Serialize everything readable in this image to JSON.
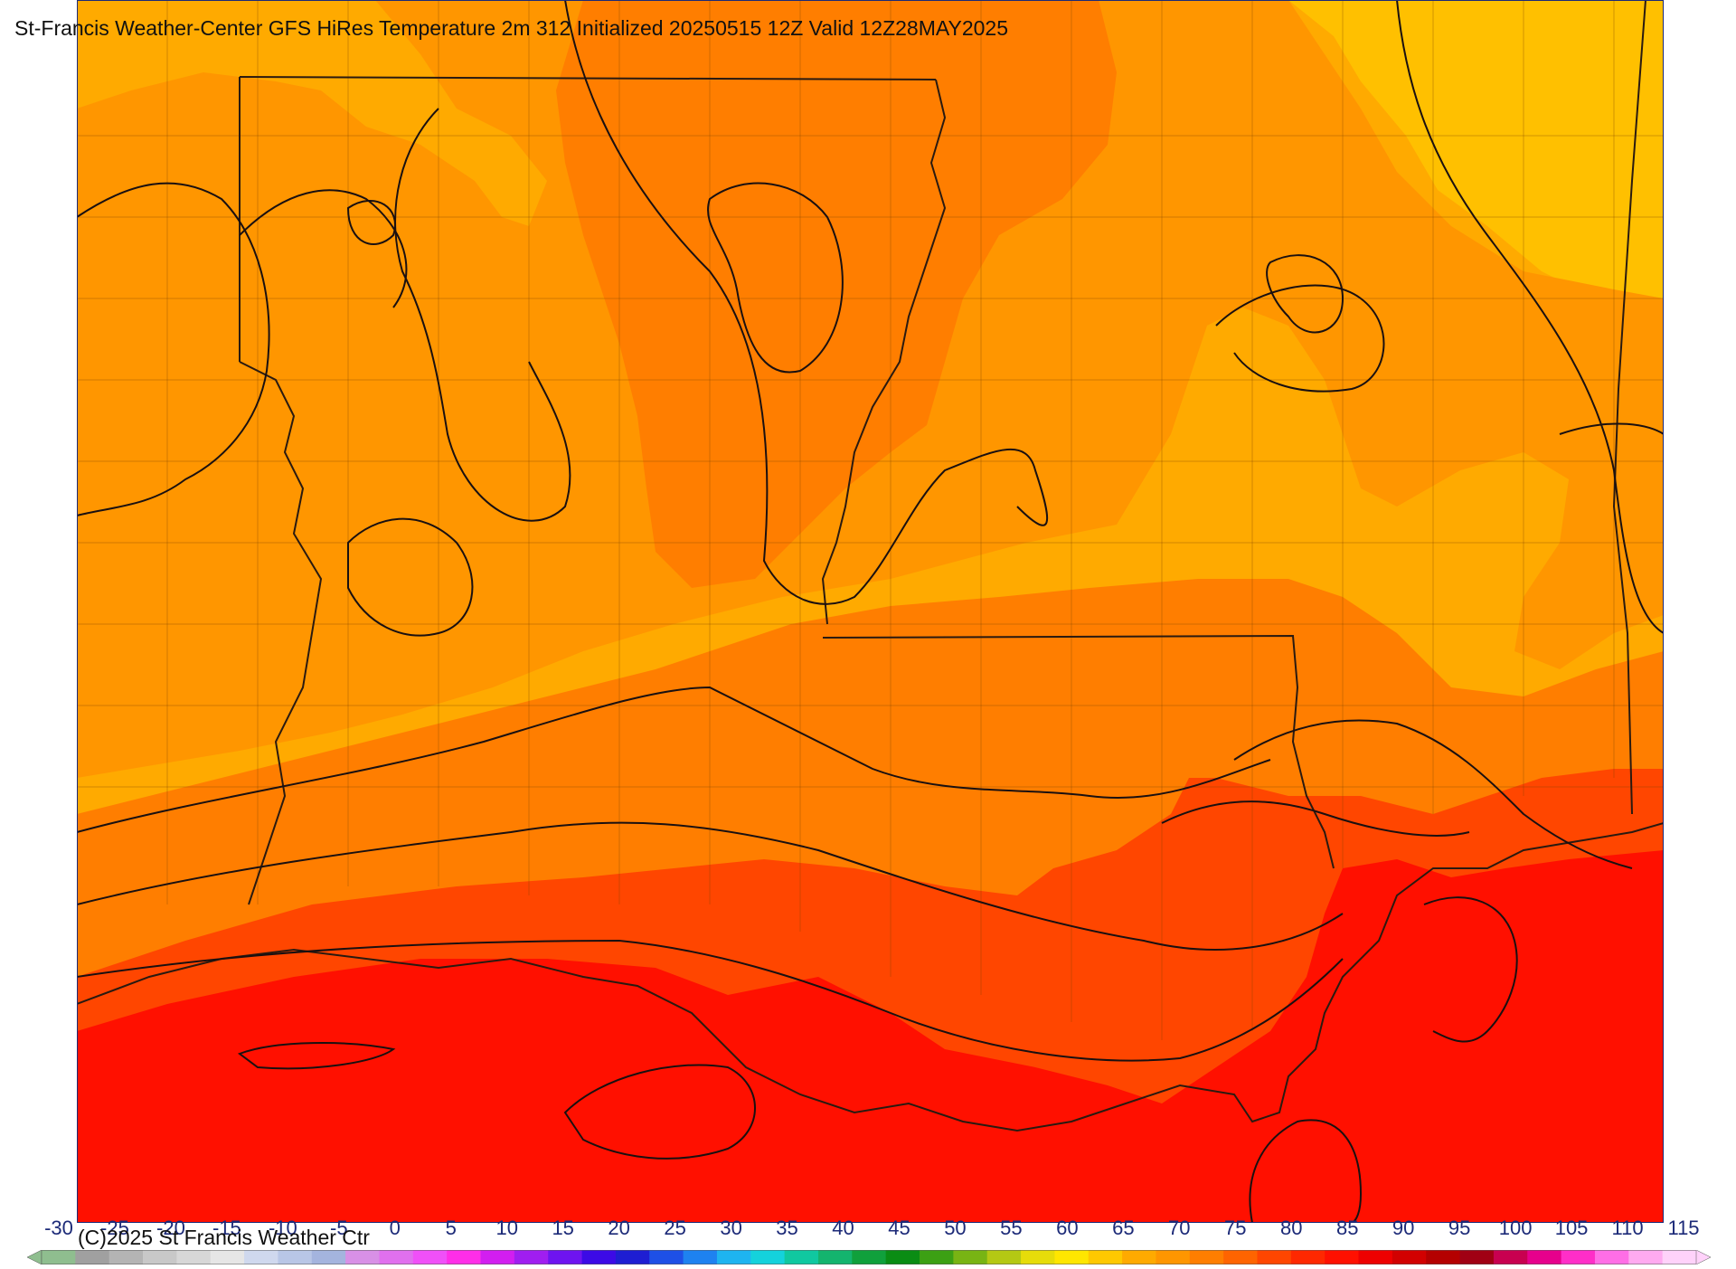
{
  "title": "St-Francis Weather-Center GFS HiRes Temperature 2m  312 Initialized 20250515 12Z Valid 12Z28MAY2025",
  "copyright": "(C)2025 St Francis Weather Ctr",
  "colorbar": {
    "labels": [
      "-30",
      "-25",
      "-20",
      "-15",
      "-10",
      "-5",
      "0",
      "5",
      "10",
      "15",
      "20",
      "25",
      "30",
      "35",
      "40",
      "45",
      "50",
      "55",
      "60",
      "65",
      "70",
      "75",
      "80",
      "85",
      "90",
      "95",
      "100",
      "105",
      "110",
      "115"
    ],
    "colors": [
      "#8fbe8f",
      "#a0a0a0",
      "#b4b4b4",
      "#c8c8c8",
      "#d7d7d7",
      "#e6e6e6",
      "#cfd8ee",
      "#b8c6e6",
      "#a4b4de",
      "#d890e6",
      "#e070ee",
      "#f050f8",
      "#ff2ee8",
      "#d21ef0",
      "#a01ef0",
      "#6e14f0",
      "#3c0ae6",
      "#1e1ed2",
      "#1e50e6",
      "#1e82f0",
      "#1eb4f0",
      "#14d2dc",
      "#10c8a0",
      "#14b46e",
      "#10a03c",
      "#0a8c14",
      "#3ca014",
      "#78b414",
      "#b4c814",
      "#e6dc0a",
      "#ffe600",
      "#ffc800",
      "#ffaa00",
      "#ff9600",
      "#ff7e00",
      "#ff6400",
      "#ff4600",
      "#ff2800",
      "#ff1000",
      "#ee0000",
      "#d20000",
      "#b40000",
      "#a00014",
      "#c80050",
      "#e6008c",
      "#ff2ec8",
      "#ff6ee6",
      "#ffaaf0",
      "#ffd2fa"
    ]
  },
  "temperature_bands_degF": [
    75,
    80,
    85,
    90,
    95
  ],
  "band_colors": {
    "75": "#ffaa00",
    "80": "#ff9600",
    "85": "#ff7e00",
    "90": "#ff4600",
    "95": "#ff1000",
    "cool": "#ffc000"
  }
}
